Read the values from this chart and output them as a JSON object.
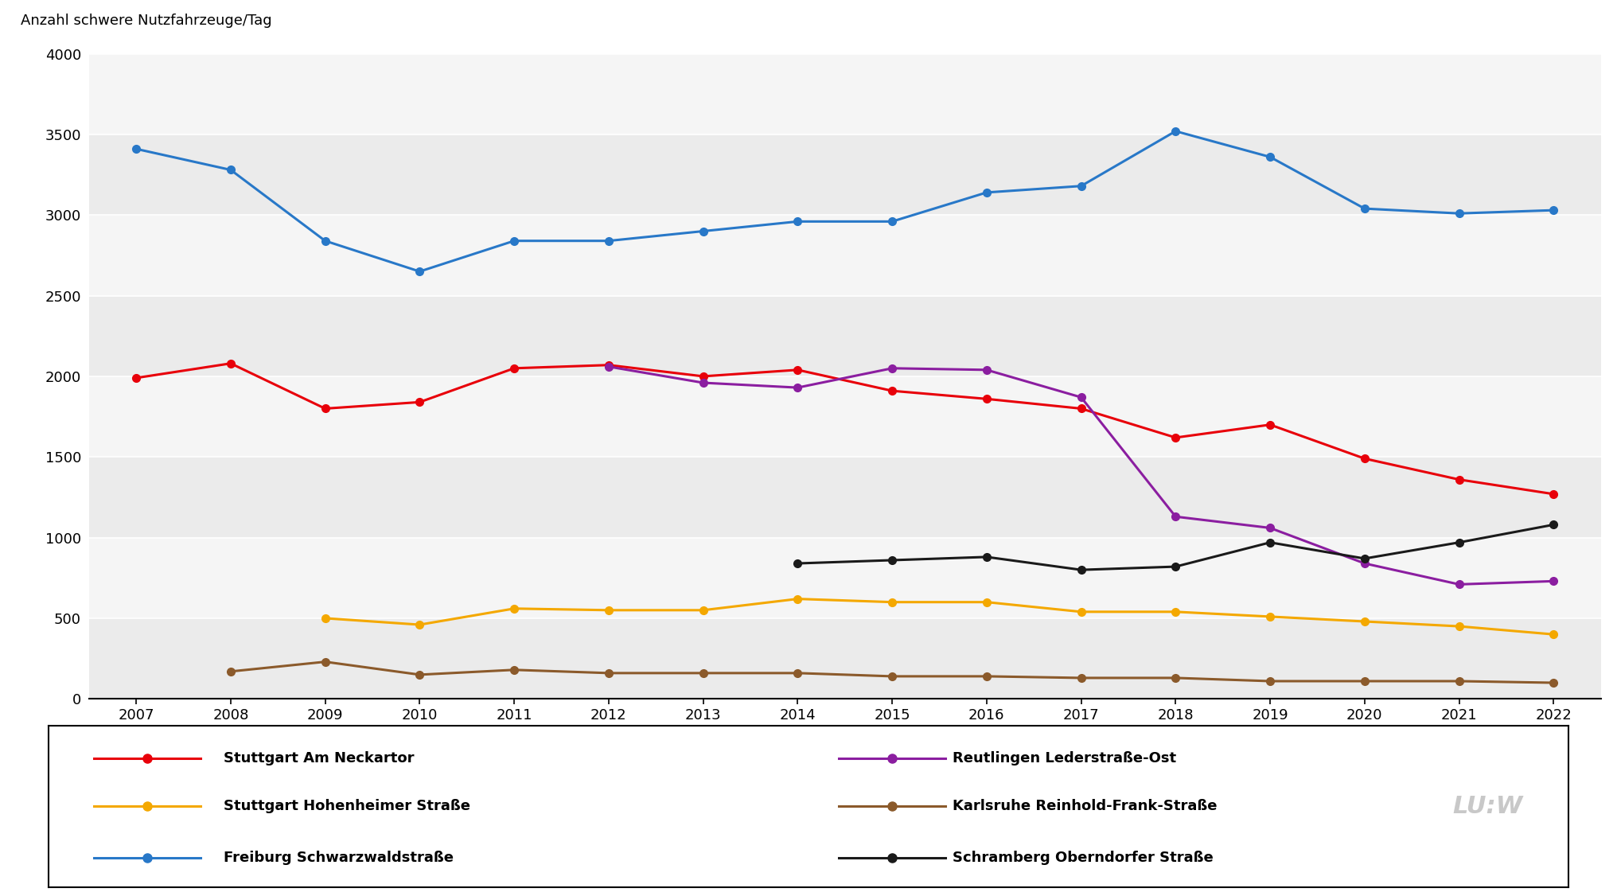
{
  "freiburg": {
    "label": "Freiburg Schwarzwaldstraße",
    "color": "#2878C8",
    "years": [
      2007,
      2008,
      2009,
      2010,
      2011,
      2012,
      2013,
      2014,
      2015,
      2016,
      2017,
      2018,
      2019,
      2020,
      2021,
      2022
    ],
    "values": [
      3410,
      3280,
      2840,
      2650,
      2840,
      2840,
      2900,
      2960,
      2960,
      3140,
      3180,
      3520,
      3360,
      3040,
      3010,
      3030
    ]
  },
  "stuttgart_neckartor": {
    "label": "Stuttgart Am Neckartor",
    "color": "#E8000A",
    "years": [
      2007,
      2008,
      2009,
      2010,
      2011,
      2012,
      2013,
      2014,
      2015,
      2016,
      2017,
      2018,
      2019,
      2020,
      2021,
      2022
    ],
    "values": [
      1990,
      2080,
      1800,
      1840,
      2050,
      2070,
      2000,
      2040,
      1910,
      1860,
      1800,
      1620,
      1700,
      1490,
      1360,
      1270
    ]
  },
  "reutlingen": {
    "label": "Reutlingen Lederstraße-Ost",
    "color": "#8B1EA0",
    "years": [
      2012,
      2013,
      2014,
      2015,
      2016,
      2017,
      2018,
      2019,
      2020,
      2021,
      2022
    ],
    "values": [
      2060,
      1960,
      1930,
      2050,
      2040,
      1870,
      1130,
      1060,
      840,
      710,
      730
    ]
  },
  "stuttgart_hohenheimer": {
    "label": "Stuttgart Hohenheimer Straße",
    "color": "#F4A800",
    "years": [
      2009,
      2010,
      2011,
      2012,
      2013,
      2014,
      2015,
      2016,
      2017,
      2018,
      2019,
      2020,
      2021,
      2022
    ],
    "values": [
      500,
      460,
      560,
      550,
      550,
      620,
      600,
      600,
      540,
      540,
      510,
      480,
      450,
      400
    ]
  },
  "karlsruhe": {
    "label": "Karlsruhe Reinhold-Frank-Straße",
    "color": "#8B5A2B",
    "years": [
      2008,
      2009,
      2010,
      2011,
      2012,
      2013,
      2014,
      2015,
      2016,
      2017,
      2018,
      2019,
      2020,
      2021,
      2022
    ],
    "values": [
      170,
      230,
      150,
      180,
      160,
      160,
      160,
      140,
      140,
      130,
      130,
      110,
      110,
      110,
      100
    ]
  },
  "schramberg": {
    "label": "Schramberg Oberndorfer Straße",
    "color": "#1A1A1A",
    "years": [
      2014,
      2015,
      2016,
      2017,
      2018,
      2019,
      2020,
      2021,
      2022
    ],
    "values": [
      840,
      860,
      880,
      800,
      820,
      970,
      870,
      970,
      1080
    ]
  },
  "ylabel": "Anzahl schwere Nutzfahrzeuge/Tag",
  "ylim": [
    0,
    4000
  ],
  "yticks": [
    0,
    500,
    1000,
    1500,
    2000,
    2500,
    3000,
    3500,
    4000
  ],
  "band_colors": [
    "#EBEBEB",
    "#F5F5F5"
  ],
  "bg_color": "#FFFFFF",
  "grid_color": "#FFFFFF",
  "watermark": "LU:W",
  "left_keys": [
    "stuttgart_neckartor",
    "stuttgart_hohenheimer",
    "freiburg"
  ],
  "right_keys": [
    "reutlingen",
    "karlsruhe",
    "schramberg"
  ]
}
